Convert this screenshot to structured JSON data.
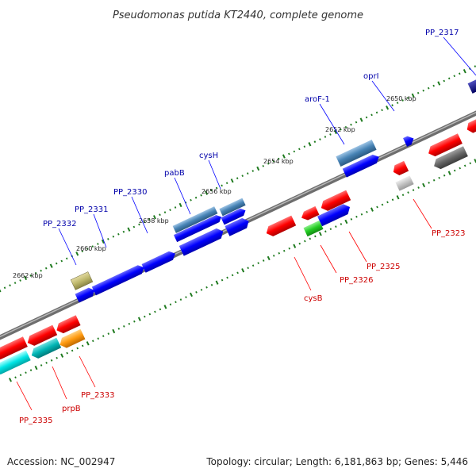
{
  "title": "Pseudomonas putida KT2440, complete genome",
  "footer": {
    "accession": "Accession: NC_002947",
    "summary": "Topology: circular; Length: 6,181,863 bp; Genes: 5,446"
  },
  "scale_labels": [
    "2662 kbp",
    "2660 kbp",
    "2658 kbp",
    "2656 kbp",
    "2654 kbp",
    "2652 kbp",
    "2650 kbp"
  ],
  "genes_forward": [
    "PP_2332",
    "PP_2331",
    "PP_2330",
    "pabB",
    "cysH",
    "aroF-1",
    "oprI",
    "PP_2317"
  ],
  "genes_reverse": [
    "PP_2335",
    "prpB",
    "PP_2333",
    "cysB",
    "PP_2326",
    "PP_2325",
    "PP_2323"
  ],
  "colors": {
    "forward_strand": "#0000ff",
    "forward_label": "#0000aa",
    "reverse_strand": "#ff0000",
    "reverse_label": "#cc0000",
    "ticks": "#1e7a1e",
    "backbone": "#808080"
  }
}
